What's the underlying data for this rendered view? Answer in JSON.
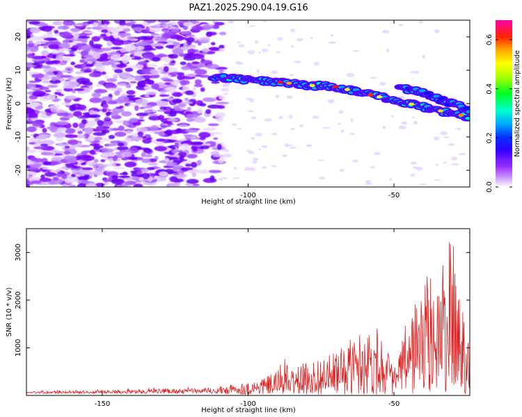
{
  "chart_data": [
    {
      "type": "heatmap",
      "title": "PAZ1.2025.290.04.19.G16",
      "xlabel": "Height of straight line (km)",
      "ylabel": "Frequency (Hz)",
      "xlim": [
        -176,
        -24
      ],
      "ylim": [
        -25,
        25
      ],
      "xticks": [
        -150,
        -100,
        -50
      ],
      "yticks": [
        20,
        10,
        0,
        -10,
        -20
      ],
      "colorbar": {
        "label": "Normalized spectral amplitude",
        "range": [
          0,
          0.68
        ],
        "ticks": [
          0.0,
          0.2,
          0.4,
          0.6
        ],
        "colormap": [
          "#ffffff",
          "#d9b3ff",
          "#8000ff",
          "#0000ff",
          "#00ffff",
          "#00ff00",
          "#ffff00",
          "#ff8000",
          "#ff0000",
          "#ff00c0"
        ]
      },
      "ridge": {
        "description": "coherent signal band",
        "x": [
          -112,
          -100,
          -90,
          -80,
          -70,
          -60,
          -50,
          -40,
          -30,
          -24
        ],
        "y": [
          8,
          7,
          6.5,
          5.5,
          5,
          3,
          1,
          -1,
          -3,
          -4
        ],
        "branch": {
          "x": [
            -48,
            -40,
            -30,
            -24
          ],
          "y": [
            5,
            3,
            0,
            -2
          ]
        }
      },
      "noise_region": {
        "x_from": -176,
        "x_to": -110
      }
    },
    {
      "type": "line",
      "xlabel": "Height of straight line (km)",
      "ylabel": "SNR (10 * v/v)",
      "xlim": [
        -176,
        -24
      ],
      "ylim": [
        0,
        3500
      ],
      "xticks": [
        -150,
        -100,
        -50
      ],
      "yticks": [
        1000,
        2000,
        3000
      ],
      "color": "#e02020",
      "envelope": {
        "x": [
          -176,
          -150,
          -130,
          -115,
          -110,
          -100,
          -95,
          -90,
          -88,
          -86,
          -80,
          -70,
          -65,
          -60,
          -55,
          -50,
          -46,
          -42,
          -38,
          -34,
          -31,
          -29,
          -27,
          -25,
          -24
        ],
        "y": [
          100,
          130,
          180,
          180,
          200,
          280,
          380,
          500,
          900,
          550,
          700,
          900,
          1200,
          1450,
          1500,
          550,
          1500,
          2200,
          2600,
          2700,
          3300,
          3150,
          2100,
          2000,
          1800
        ]
      }
    }
  ]
}
